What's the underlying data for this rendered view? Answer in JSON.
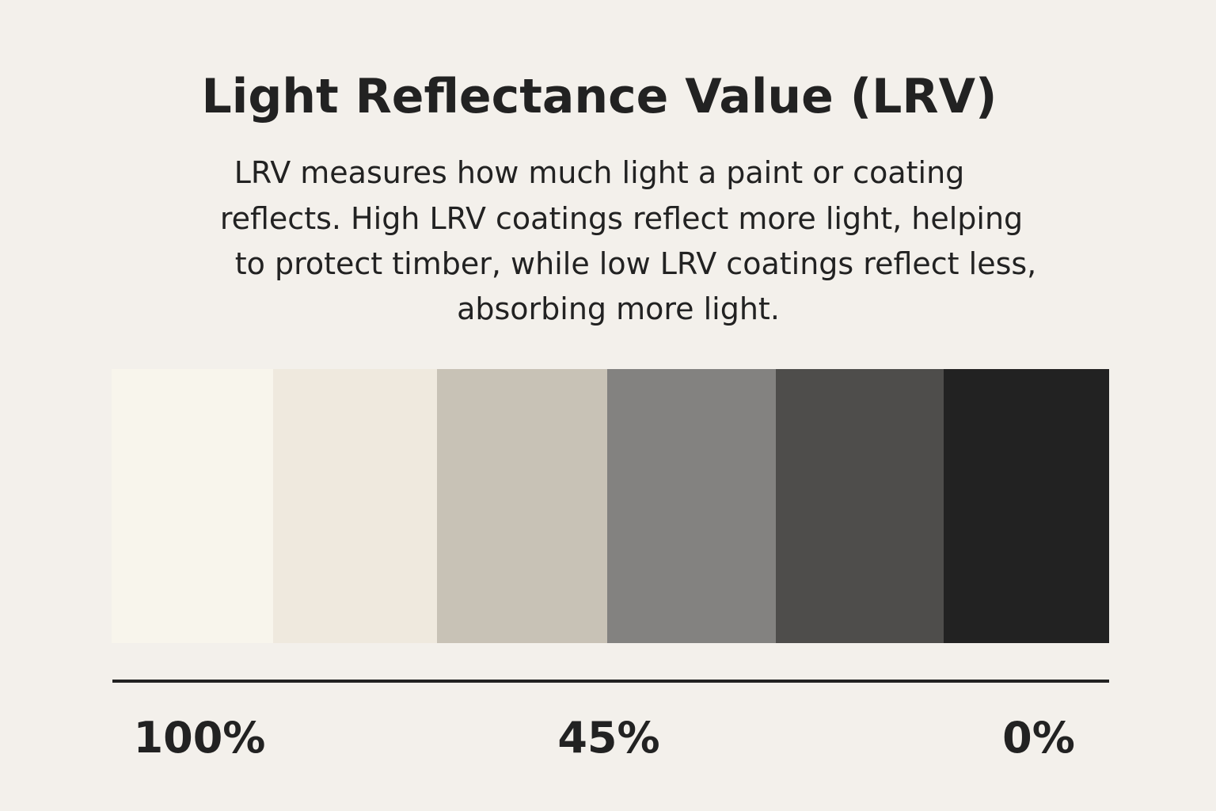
{
  "header": {
    "title": "Light Reflectance Value (LRV)",
    "description": [
      "LRV measures how much light a paint or coating",
      "reflects. High LRV coatings reflect more light, helping",
      "to protect timber, while low LRV coatings reflect less,",
      "absorbing more light."
    ]
  },
  "scale": {
    "labels": [
      "100%",
      "45%",
      "0%"
    ]
  }
}
